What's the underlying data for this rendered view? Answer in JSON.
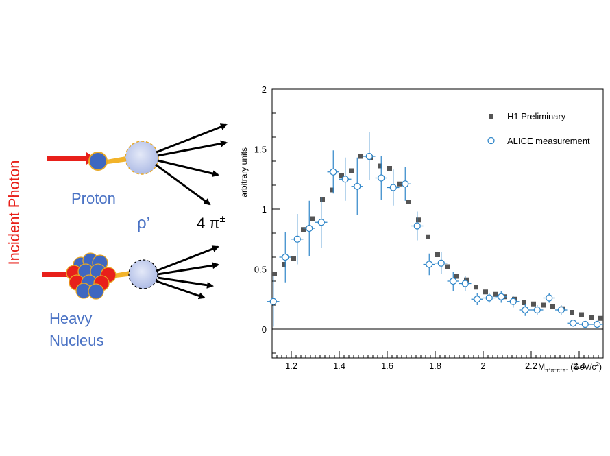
{
  "diagram": {
    "incident_label": "Incident Photon",
    "proton_label": "Proton",
    "rho_label": "ρ’",
    "pions_label": "4 π",
    "pions_sup": "±",
    "nucleus_label_1": "Heavy",
    "nucleus_label_2": "Nucleus",
    "colors": {
      "photon": "#e8201a",
      "proton": "#3f67c0",
      "rho": "#b7c4ea",
      "label": "#4a72c4"
    }
  },
  "chart_data": {
    "type": "scatter",
    "ylabel": "arbitrary units",
    "xlabel_main": "M",
    "xlabel_sub": "π⁺π⁻π⁺π⁻",
    "xlabel_unit": "(GeV/c",
    "xlabel_sup": "2",
    "xlabel_close": ")",
    "xlim": [
      1.12,
      2.5
    ],
    "ylim": [
      -0.24,
      2.0
    ],
    "xticks": [
      "1.2",
      "1.4",
      "1.6",
      "1.8",
      "2",
      "2.2",
      "2.4"
    ],
    "xtick_values": [
      1.2,
      1.4,
      1.6,
      1.8,
      2.0,
      2.2,
      2.4
    ],
    "yticks": [
      "0",
      "0.5",
      "1",
      "1.5",
      "2"
    ],
    "ytick_values": [
      0,
      0.5,
      1.0,
      1.5,
      2.0
    ],
    "legend_position": "top-right",
    "series": [
      {
        "name": "H1 Preliminary",
        "marker": "square",
        "color": "#555555",
        "x": [
          1.13,
          1.17,
          1.21,
          1.25,
          1.29,
          1.33,
          1.37,
          1.41,
          1.45,
          1.49,
          1.53,
          1.57,
          1.61,
          1.65,
          1.69,
          1.73,
          1.77,
          1.81,
          1.85,
          1.89,
          1.93,
          1.97,
          2.01,
          2.05,
          2.09,
          2.13,
          2.17,
          2.21,
          2.25,
          2.29,
          2.33,
          2.37,
          2.41,
          2.45,
          2.49
        ],
        "y": [
          0.46,
          0.54,
          0.59,
          0.83,
          0.92,
          1.08,
          1.16,
          1.28,
          1.32,
          1.44,
          1.43,
          1.36,
          1.34,
          1.21,
          1.06,
          0.91,
          0.77,
          0.62,
          0.52,
          0.44,
          0.41,
          0.35,
          0.31,
          0.29,
          0.27,
          0.25,
          0.22,
          0.21,
          0.2,
          0.19,
          0.17,
          0.14,
          0.12,
          0.1,
          0.09
        ]
      },
      {
        "name": "ALICE measurement",
        "marker": "open-circle",
        "color": "#2f86c9",
        "x": [
          1.125,
          1.175,
          1.225,
          1.275,
          1.325,
          1.375,
          1.425,
          1.475,
          1.525,
          1.575,
          1.625,
          1.675,
          1.725,
          1.775,
          1.825,
          1.875,
          1.925,
          1.975,
          2.025,
          2.075,
          2.125,
          2.175,
          2.225,
          2.275,
          2.325,
          2.375,
          2.425,
          2.475
        ],
        "y": [
          0.23,
          0.6,
          0.75,
          0.84,
          0.89,
          1.31,
          1.25,
          1.19,
          1.44,
          1.26,
          1.18,
          1.21,
          0.86,
          0.54,
          0.55,
          0.4,
          0.38,
          0.25,
          0.26,
          0.27,
          0.23,
          0.16,
          0.16,
          0.26,
          0.16,
          0.05,
          0.04,
          0.04
        ],
        "yerr": [
          0.21,
          0.21,
          0.21,
          0.23,
          0.21,
          0.18,
          0.18,
          0.24,
          0.2,
          0.18,
          0.15,
          0.14,
          0.12,
          0.09,
          0.09,
          0.08,
          0.06,
          0.05,
          0.04,
          0.05,
          0.05,
          0.05,
          0.04,
          0.04,
          0.04,
          0.03,
          0.03,
          0.03
        ],
        "xerr": 0.025
      }
    ]
  }
}
